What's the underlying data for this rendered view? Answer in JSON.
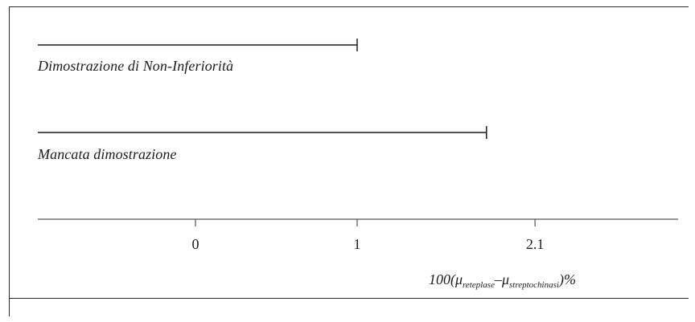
{
  "intervals": [
    {
      "label": "Dimostrazione di Non-Inferiorità",
      "upper": 1
    },
    {
      "label": "Mancata dimostrazione",
      "upper": 1.8
    }
  ],
  "axis": {
    "ticks": [
      {
        "value": 0,
        "label": "0"
      },
      {
        "value": 1,
        "label": "1"
      },
      {
        "value": 2.1,
        "label": "2.1"
      }
    ],
    "range": [
      -0.95,
      2.95
    ]
  },
  "formula": {
    "prefix": "100",
    "open": "(",
    "mu1": "μ",
    "sub1": "reteplase",
    "minus": "–",
    "mu2": "μ",
    "sub2": "streptochinasi",
    "close": ")%"
  }
}
